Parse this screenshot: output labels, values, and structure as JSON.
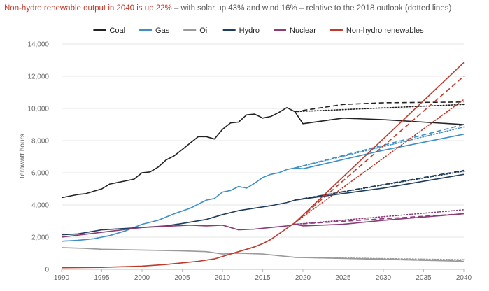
{
  "title_highlight": "Non-hydro renewable output in 2040 is up 22%",
  "title_rest": " – with solar up 43% and wind 16% – relative to the 2018 outlook (dotted lines)",
  "chart_data": {
    "type": "line",
    "xlabel": "",
    "ylabel": "Terawatt hours",
    "xlim": [
      1990,
      2040
    ],
    "ylim": [
      0,
      14000
    ],
    "x_ticks": [
      1990,
      1995,
      2000,
      2005,
      2010,
      2015,
      2020,
      2025,
      2030,
      2035,
      2040
    ],
    "y_ticks": [
      0,
      2000,
      4000,
      6000,
      8000,
      10000,
      12000,
      14000
    ],
    "y_tick_labels": [
      "0",
      "2,000",
      "4,000",
      "6,000",
      "8,000",
      "10,000",
      "12,000",
      "14,000"
    ],
    "grid": "horizontal",
    "legend_position": "top",
    "divider_year": 2019,
    "series": [
      {
        "name": "Coal",
        "color": "#222222",
        "history": {
          "x": [
            1990,
            1991,
            1992,
            1993,
            1994,
            1995,
            1996,
            1997,
            1998,
            1999,
            2000,
            2001,
            2002,
            2003,
            2004,
            2005,
            2006,
            2007,
            2008,
            2009,
            2010,
            2011,
            2012,
            2013,
            2014,
            2015,
            2016,
            2017,
            2018,
            2019
          ],
          "y": [
            4450,
            4550,
            4650,
            4700,
            4850,
            5000,
            5300,
            5400,
            5500,
            5600,
            6000,
            6050,
            6350,
            6800,
            7050,
            7450,
            7850,
            8250,
            8250,
            8100,
            8700,
            9100,
            9150,
            9600,
            9650,
            9400,
            9500,
            9750,
            10050,
            9800
          ]
        },
        "projection": {
          "x": [
            2019,
            2020,
            2025,
            2030,
            2040
          ],
          "y": [
            9800,
            9050,
            9400,
            9300,
            9000
          ]
        },
        "alt_projection": {
          "style": "dashed",
          "x": [
            2019,
            2025,
            2030,
            2040
          ],
          "y": [
            9800,
            10250,
            10350,
            10400
          ]
        },
        "outlook_2018": {
          "style": "dotted",
          "x": [
            2019,
            2040
          ],
          "y": [
            9800,
            10250
          ]
        }
      },
      {
        "name": "Gas",
        "color": "#3d8fc6",
        "history": {
          "x": [
            1990,
            1992,
            1994,
            1995,
            1996,
            1998,
            2000,
            2002,
            2004,
            2006,
            2008,
            2009,
            2010,
            2011,
            2012,
            2013,
            2014,
            2015,
            2016,
            2017,
            2018,
            2019
          ],
          "y": [
            1750,
            1800,
            1900,
            2000,
            2100,
            2400,
            2800,
            3050,
            3450,
            3800,
            4300,
            4400,
            4800,
            4900,
            5150,
            5050,
            5350,
            5700,
            5900,
            6000,
            6200,
            6300
          ]
        },
        "projection": {
          "x": [
            2019,
            2020,
            2030,
            2040
          ],
          "y": [
            6300,
            6250,
            7400,
            8400
          ]
        },
        "alt_projection": {
          "style": "dashed",
          "x": [
            2019,
            2040
          ],
          "y": [
            6300,
            9000
          ]
        },
        "outlook_2018": {
          "style": "dotted",
          "x": [
            2019,
            2040
          ],
          "y": [
            6300,
            8850
          ]
        }
      },
      {
        "name": "Oil",
        "color": "#9a9a9a",
        "history": {
          "x": [
            1990,
            1993,
            1995,
            2000,
            2005,
            2008,
            2010,
            2012,
            2015,
            2019
          ],
          "y": [
            1350,
            1300,
            1250,
            1200,
            1150,
            1100,
            950,
            1000,
            950,
            750
          ]
        },
        "projection": {
          "x": [
            2019,
            2040
          ],
          "y": [
            750,
            500
          ]
        },
        "alt_projection": {
          "style": "dashed",
          "x": [
            2019,
            2040
          ],
          "y": [
            750,
            550
          ]
        },
        "outlook_2018": {
          "style": "dotted",
          "x": [
            2019,
            2040
          ],
          "y": [
            750,
            600
          ]
        }
      },
      {
        "name": "Hydro",
        "color": "#1d3d5c",
        "history": {
          "x": [
            1990,
            1992,
            1995,
            2000,
            2003,
            2005,
            2008,
            2010,
            2012,
            2014,
            2016,
            2018,
            2019
          ],
          "y": [
            2150,
            2200,
            2450,
            2600,
            2700,
            2850,
            3100,
            3400,
            3650,
            3800,
            3950,
            4150,
            4300
          ]
        },
        "projection": {
          "x": [
            2019,
            2030,
            2040
          ],
          "y": [
            4300,
            5050,
            5900
          ]
        },
        "alt_projection": {
          "style": "dashed",
          "x": [
            2019,
            2040
          ],
          "y": [
            4300,
            6150
          ]
        },
        "outlook_2018": {
          "style": "dotted",
          "x": [
            2019,
            2040
          ],
          "y": [
            4300,
            6100
          ]
        }
      },
      {
        "name": "Nuclear",
        "color": "#8a3b78",
        "history": {
          "x": [
            1990,
            1995,
            2000,
            2002,
            2004,
            2006,
            2008,
            2010,
            2011,
            2012,
            2014,
            2016,
            2018,
            2019
          ],
          "y": [
            2000,
            2300,
            2600,
            2650,
            2700,
            2750,
            2700,
            2750,
            2600,
            2450,
            2500,
            2600,
            2700,
            2800
          ]
        },
        "projection": {
          "x": [
            2019,
            2020,
            2025,
            2030,
            2040
          ],
          "y": [
            2800,
            2700,
            2800,
            3050,
            3450
          ]
        },
        "alt_projection": {
          "style": "dashed",
          "x": [
            2019,
            2040
          ],
          "y": [
            2800,
            3450
          ]
        },
        "outlook_2018": {
          "style": "dotted",
          "x": [
            2019,
            2040
          ],
          "y": [
            2800,
            3700
          ]
        }
      },
      {
        "name": "Non-hydro renewables",
        "color": "#c0392b",
        "history": {
          "x": [
            1990,
            1995,
            2000,
            2003,
            2005,
            2007,
            2009,
            2010,
            2011,
            2012,
            2013,
            2014,
            2015,
            2016,
            2017,
            2018,
            2019
          ],
          "y": [
            100,
            120,
            200,
            300,
            400,
            500,
            650,
            800,
            950,
            1100,
            1250,
            1400,
            1600,
            1850,
            2200,
            2550,
            2900
          ]
        },
        "projection": {
          "x": [
            2019,
            2040
          ],
          "y": [
            2900,
            12850
          ]
        },
        "alt_projection": {
          "style": "dashed",
          "x": [
            2019,
            2040
          ],
          "y": [
            2900,
            12000
          ]
        },
        "outlook_2018": {
          "style": "dotted",
          "x": [
            2019,
            2040
          ],
          "y": [
            2900,
            10550
          ]
        }
      }
    ]
  }
}
